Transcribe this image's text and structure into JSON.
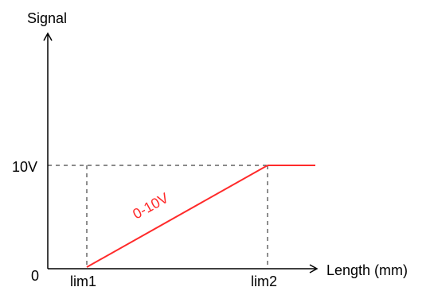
{
  "labels": {
    "y_axis": "Signal",
    "x_axis": "Length (mm)",
    "y_top": "10V",
    "origin": "0",
    "x_left": "lim1",
    "x_right": "lim2",
    "ramp": "0-10V"
  },
  "colors": {
    "axis": "#000000",
    "ramp": "#ff2a2a",
    "guide": "#444444"
  }
}
